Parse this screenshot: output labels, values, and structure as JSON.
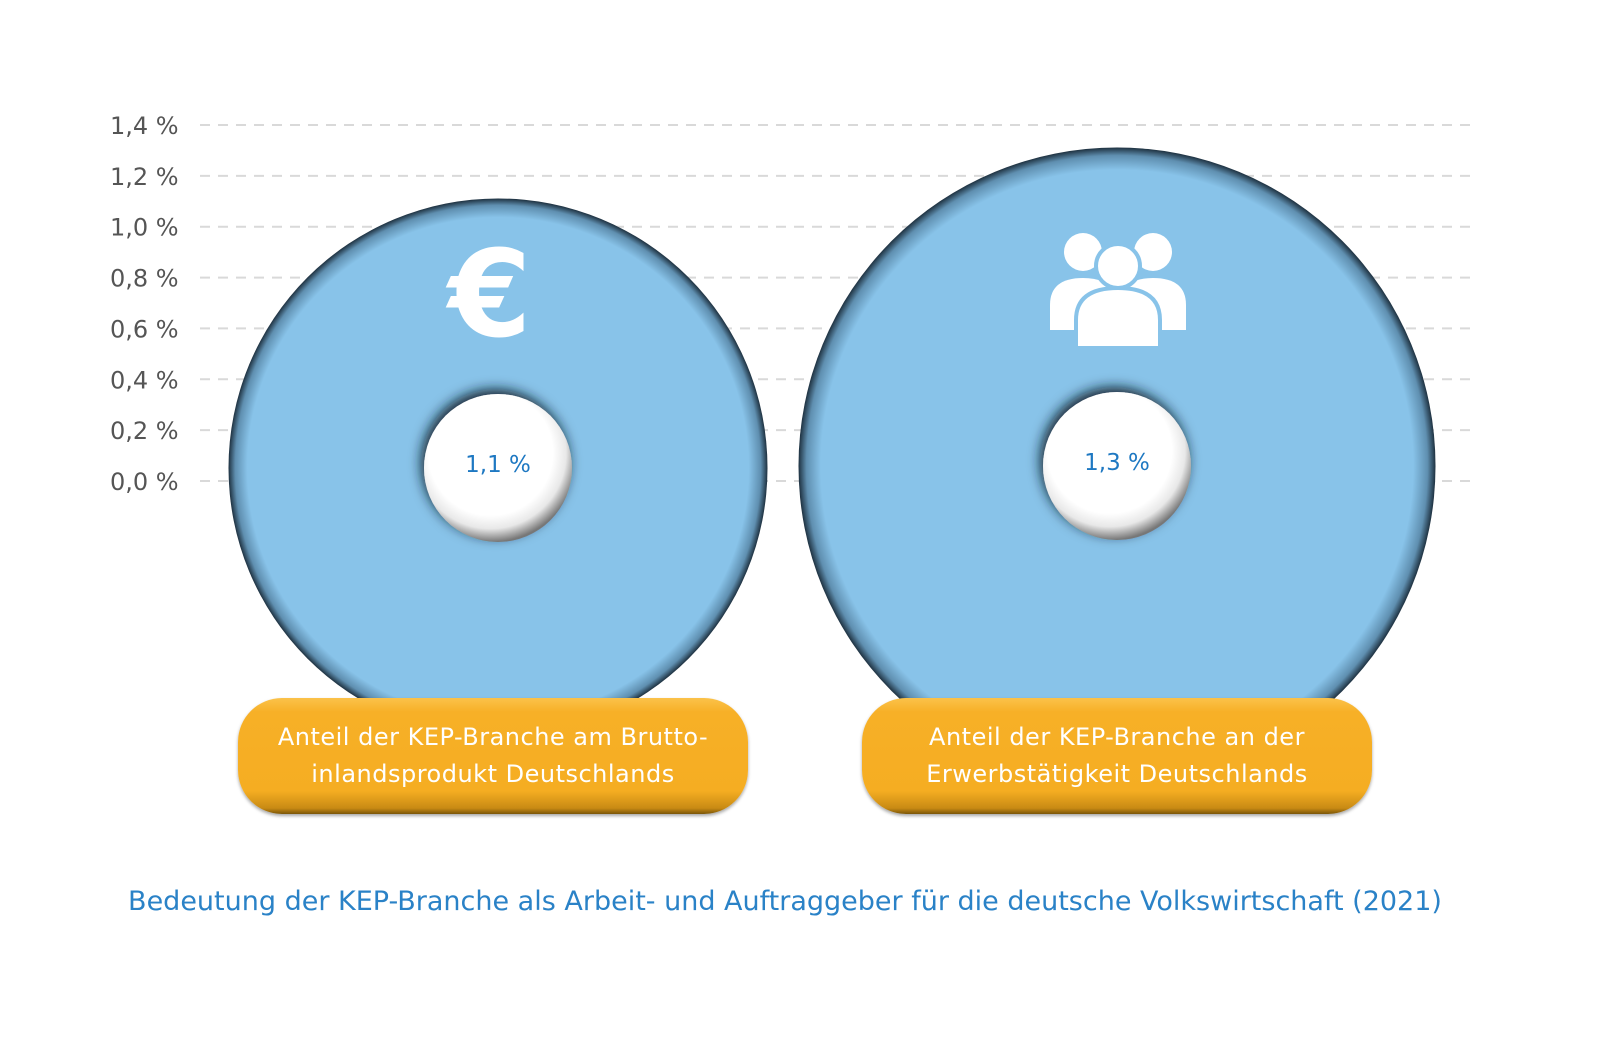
{
  "chart_data": {
    "type": "scatter",
    "title": "Bedeutung der KEP-Branche als Arbeit- und Auftraggeber für die deutsche Volkswirtschaft (2021)",
    "xlabel": "",
    "ylabel": "",
    "ylim": [
      0,
      1.4
    ],
    "y_ticks": [
      "0,0 %",
      "0,2 %",
      "0,4 %",
      "0,6 %",
      "0,8 %",
      "1,0 %",
      "1,2 %",
      "1,4 %"
    ],
    "grid": true,
    "series": [
      {
        "category": "Anteil der KEP-Branche am Brutto-\ninlandsprodukt Deutschlands",
        "value": 1.1,
        "label": "1,1 %",
        "icon": "euro-icon"
      },
      {
        "category": "Anteil der KEP-Branche an der\nErwerbstätigkeit Deutschlands",
        "value": 1.3,
        "label": "1,3 %",
        "icon": "people-icon"
      }
    ]
  },
  "colors": {
    "circle": "#88c3e9",
    "pill": "#f6ae22",
    "value_text": "#1e78c2",
    "caption": "#2a82c7",
    "grid": "#d9d9d9"
  }
}
